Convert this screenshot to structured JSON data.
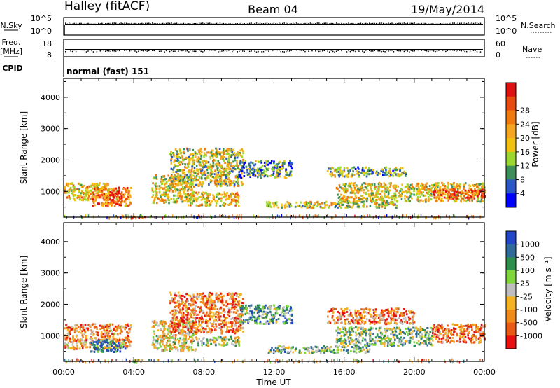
{
  "header": {
    "site": "Halley (fitACF)",
    "beam": "Beam 04",
    "date": "19/May/2014"
  },
  "noise_panel": {
    "left_label": "N.Sky",
    "right_label": "N.Search",
    "left_ticks": [
      "10^5",
      "10^0"
    ],
    "right_ticks": [
      "10^5",
      "10^0"
    ]
  },
  "freq_panel": {
    "left_label_1": "Freq.",
    "left_label_2": "[MHz]",
    "right_label": "Nave",
    "left_ticks": [
      "18",
      "8"
    ],
    "right_ticks": [
      "60",
      "0"
    ]
  },
  "cpid": {
    "label": "CPID",
    "value": "normal (fast) 151"
  },
  "chart_data": [
    {
      "type": "heatmap",
      "name": "power",
      "ylabel": "Slant Range [km]",
      "ylim": [
        180,
        4600
      ],
      "yticks": [
        "1000",
        "2000",
        "3000",
        "4000"
      ],
      "colorbar_label": "Power [dB]",
      "colorbar_ticks": [
        "4",
        "8",
        "12",
        "16",
        "20",
        "24",
        "28"
      ],
      "colors": [
        "#0000ff",
        "#2a57c8",
        "#3e8e5a",
        "#9bd82f",
        "#f2c10f",
        "#f5a51f",
        "#f07a10",
        "#e84a10",
        "#e01010"
      ],
      "scatter_regions": [
        {
          "t": [
            0.0,
            2.6
          ],
          "r": [
            750,
            1300
          ],
          "level": 0.55
        },
        {
          "t": [
            1.6,
            3.8
          ],
          "r": [
            550,
            1150
          ],
          "level": 0.7
        },
        {
          "t": [
            2.6,
            3.3
          ],
          "r": [
            600,
            1050
          ],
          "level": 0.95
        },
        {
          "t": [
            3.8,
            4.6
          ],
          "r": [
            160,
            260
          ],
          "level": 0.95
        },
        {
          "t": [
            5.0,
            7.4
          ],
          "r": [
            650,
            1550
          ],
          "level": 0.5
        },
        {
          "t": [
            6.0,
            10.2
          ],
          "r": [
            1200,
            2400
          ],
          "level": 0.45
        },
        {
          "t": [
            7.0,
            10.0
          ],
          "r": [
            550,
            1000
          ],
          "level": 0.55
        },
        {
          "t": [
            10.0,
            13.0
          ],
          "r": [
            1450,
            2000
          ],
          "level": 0.3
        },
        {
          "t": [
            11.5,
            19.0
          ],
          "r": [
            500,
            700
          ],
          "level": 0.45
        },
        {
          "t": [
            15.0,
            19.5
          ],
          "r": [
            1500,
            1800
          ],
          "level": 0.35
        },
        {
          "t": [
            15.5,
            24.0
          ],
          "r": [
            700,
            1300
          ],
          "level": 0.5
        },
        {
          "t": [
            21.0,
            24.0
          ],
          "r": [
            800,
            1100
          ],
          "level": 0.85
        }
      ]
    },
    {
      "type": "heatmap",
      "name": "velocity",
      "ylabel": "Slant Range [km]",
      "xlabel": "Time UT",
      "ylim": [
        180,
        4600
      ],
      "yticks": [
        "1000",
        "2000",
        "3000",
        "4000"
      ],
      "xticks": [
        "00:00",
        "04:00",
        "08:00",
        "12:00",
        "16:00",
        "20:00",
        "00:00"
      ],
      "colorbar_label": "Velocity [m s⁻¹]",
      "colorbar_ticks": [
        "1000",
        "500",
        "100",
        "25",
        "-25",
        "-100",
        "-500",
        "-1000"
      ],
      "colors": [
        "#2147c8",
        "#2f6a9c",
        "#2e8f4d",
        "#7fd63b",
        "#bebebe",
        "#f5b321",
        "#f08a19",
        "#ea5a14",
        "#e81010"
      ],
      "scatter_regions": [
        {
          "t": [
            0.0,
            3.8
          ],
          "r": [
            600,
            1400
          ],
          "level": 0.7
        },
        {
          "t": [
            1.5,
            3.5
          ],
          "r": [
            500,
            900
          ],
          "level": 0.2
        },
        {
          "t": [
            3.8,
            4.6
          ],
          "r": [
            160,
            280
          ],
          "level": 0.45
        },
        {
          "t": [
            5.0,
            7.5
          ],
          "r": [
            550,
            1500
          ],
          "level": 0.55
        },
        {
          "t": [
            6.0,
            10.2
          ],
          "r": [
            1100,
            2400
          ],
          "level": 0.75
        },
        {
          "t": [
            7.5,
            10.0
          ],
          "r": [
            700,
            1000
          ],
          "level": 0.45
        },
        {
          "t": [
            10.0,
            13.0
          ],
          "r": [
            1400,
            2000
          ],
          "level": 0.3
        },
        {
          "t": [
            11.5,
            17.5
          ],
          "r": [
            480,
            700
          ],
          "level": 0.38
        },
        {
          "t": [
            15.0,
            20.0
          ],
          "r": [
            1400,
            1900
          ],
          "level": 0.75
        },
        {
          "t": [
            15.5,
            21.0
          ],
          "r": [
            700,
            1300
          ],
          "level": 0.4
        },
        {
          "t": [
            21.0,
            24.0
          ],
          "r": [
            800,
            1400
          ],
          "level": 0.8
        }
      ]
    }
  ]
}
